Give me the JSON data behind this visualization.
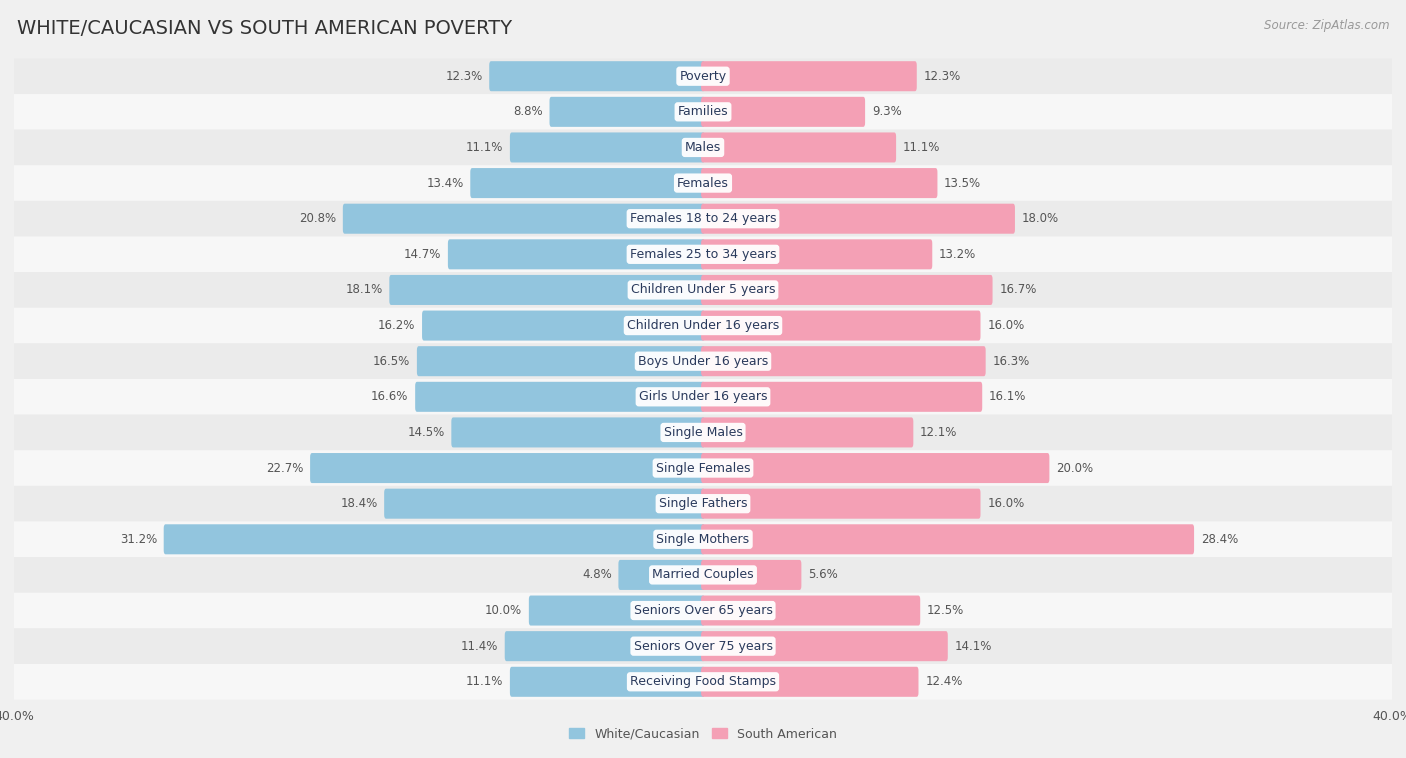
{
  "title": "WHITE/CAUCASIAN VS SOUTH AMERICAN POVERTY",
  "source": "Source: ZipAtlas.com",
  "categories": [
    "Poverty",
    "Families",
    "Males",
    "Females",
    "Females 18 to 24 years",
    "Females 25 to 34 years",
    "Children Under 5 years",
    "Children Under 16 years",
    "Boys Under 16 years",
    "Girls Under 16 years",
    "Single Males",
    "Single Females",
    "Single Fathers",
    "Single Mothers",
    "Married Couples",
    "Seniors Over 65 years",
    "Seniors Over 75 years",
    "Receiving Food Stamps"
  ],
  "white_values": [
    12.3,
    8.8,
    11.1,
    13.4,
    20.8,
    14.7,
    18.1,
    16.2,
    16.5,
    16.6,
    14.5,
    22.7,
    18.4,
    31.2,
    4.8,
    10.0,
    11.4,
    11.1
  ],
  "south_american_values": [
    12.3,
    9.3,
    11.1,
    13.5,
    18.0,
    13.2,
    16.7,
    16.0,
    16.3,
    16.1,
    12.1,
    20.0,
    16.0,
    28.4,
    5.6,
    12.5,
    14.1,
    12.4
  ],
  "white_color": "#92c5de",
  "south_american_color": "#f4a0b5",
  "row_color_even": "#ebebeb",
  "row_color_odd": "#f7f7f7",
  "background_color": "#f0f0f0",
  "xlim": 40.0,
  "bar_height": 0.62,
  "title_fontsize": 14,
  "label_fontsize": 9,
  "tick_fontsize": 9,
  "source_fontsize": 8.5,
  "value_fontsize": 8.5
}
